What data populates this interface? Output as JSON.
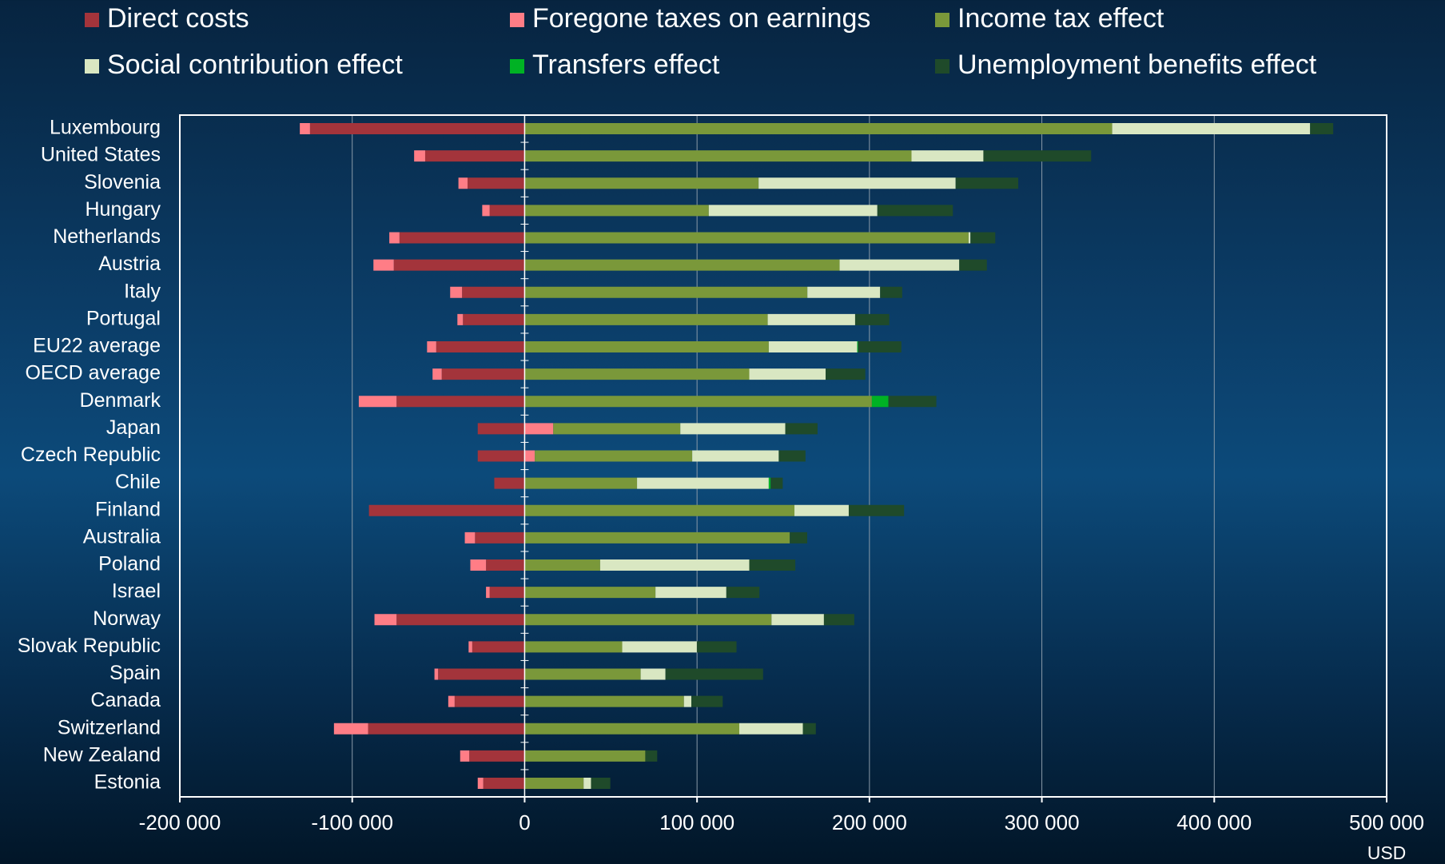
{
  "chart_data": {
    "type": "bar",
    "orientation": "horizontal",
    "stacked": true,
    "xlabel": "USD",
    "categories": [
      "Luxembourg",
      "United States",
      "Slovenia",
      "Hungary",
      "Netherlands",
      "Austria",
      "Italy",
      "Portugal",
      "EU22 average",
      "OECD average",
      "Denmark",
      "Japan",
      "Czech Republic",
      "Chile",
      "Finland",
      "Australia",
      "Poland",
      "Israel",
      "Norway",
      "Slovak Republic",
      "Spain",
      "Canada",
      "Switzerland",
      "New Zealand",
      "Estonia"
    ],
    "series": [
      {
        "name": "Direct costs",
        "color": "#a3343b",
        "values": [
          -124500,
          -57700,
          -33100,
          -20300,
          -72600,
          -75900,
          -36300,
          -35800,
          -51300,
          -48100,
          -74300,
          -27200,
          -27200,
          -17600,
          -90300,
          -28800,
          -22400,
          -20300,
          -74300,
          -30400,
          -50200,
          -40600,
          -90800,
          -32100,
          -24000
        ]
      },
      {
        "name": "Foregone taxes on earnings",
        "color": "#ff7d86",
        "values": [
          -5900,
          -6400,
          -5300,
          -4300,
          -5900,
          -11800,
          -6900,
          -3200,
          -5300,
          -5300,
          -21900,
          16600,
          5900,
          0,
          0,
          -5900,
          -9100,
          -2100,
          -12800,
          -2100,
          -2100,
          -3700,
          -19800,
          -5300,
          -3200
        ]
      },
      {
        "name": "Income tax effect",
        "color": "#7a983a",
        "values": [
          340800,
          224400,
          135700,
          106800,
          257500,
          182700,
          164000,
          141000,
          141600,
          130300,
          201400,
          73700,
          91300,
          65200,
          156500,
          153800,
          43800,
          75900,
          143200,
          56600,
          67300,
          92400,
          124500,
          70000,
          34200
        ]
      },
      {
        "name": "Social contribution effect",
        "color": "#d9e7c2",
        "values": [
          114800,
          41700,
          114300,
          97800,
          1100,
          69400,
          42200,
          50700,
          51300,
          44300,
          0,
          60900,
          50200,
          76400,
          31500,
          0,
          86500,
          41100,
          30400,
          43300,
          14400,
          4300,
          36900,
          0,
          4300
        ]
      },
      {
        "name": "Transfers effect",
        "color": "#00b224",
        "values": [
          0,
          0,
          0,
          0,
          0,
          0,
          0,
          0,
          500,
          0,
          9600,
          0,
          0,
          1100,
          0,
          0,
          0,
          0,
          0,
          0,
          0,
          0,
          0,
          0,
          0
        ]
      },
      {
        "name": "Unemployment benefits effect",
        "color": "#1f4a2a",
        "values": [
          13400,
          62500,
          36300,
          43800,
          14400,
          16000,
          12800,
          19800,
          25100,
          23000,
          27800,
          18700,
          15500,
          7000,
          32100,
          10100,
          26700,
          19200,
          17600,
          23000,
          56600,
          18200,
          7500,
          6900,
          11200
        ]
      }
    ],
    "xlim": [
      -200000,
      500000
    ],
    "xticks": [
      {
        "value": -200000,
        "label": "-200 000"
      },
      {
        "value": -100000,
        "label": "-100 000"
      },
      0,
      {
        "value": 100000,
        "label": "100 000"
      },
      {
        "value": 200000,
        "label": "200 000"
      },
      {
        "value": 300000,
        "label": "300 000"
      },
      {
        "value": 400000,
        "label": "400 000"
      },
      {
        "value": 500000,
        "label": "500 000"
      }
    ],
    "grid": true,
    "legend": "top"
  }
}
